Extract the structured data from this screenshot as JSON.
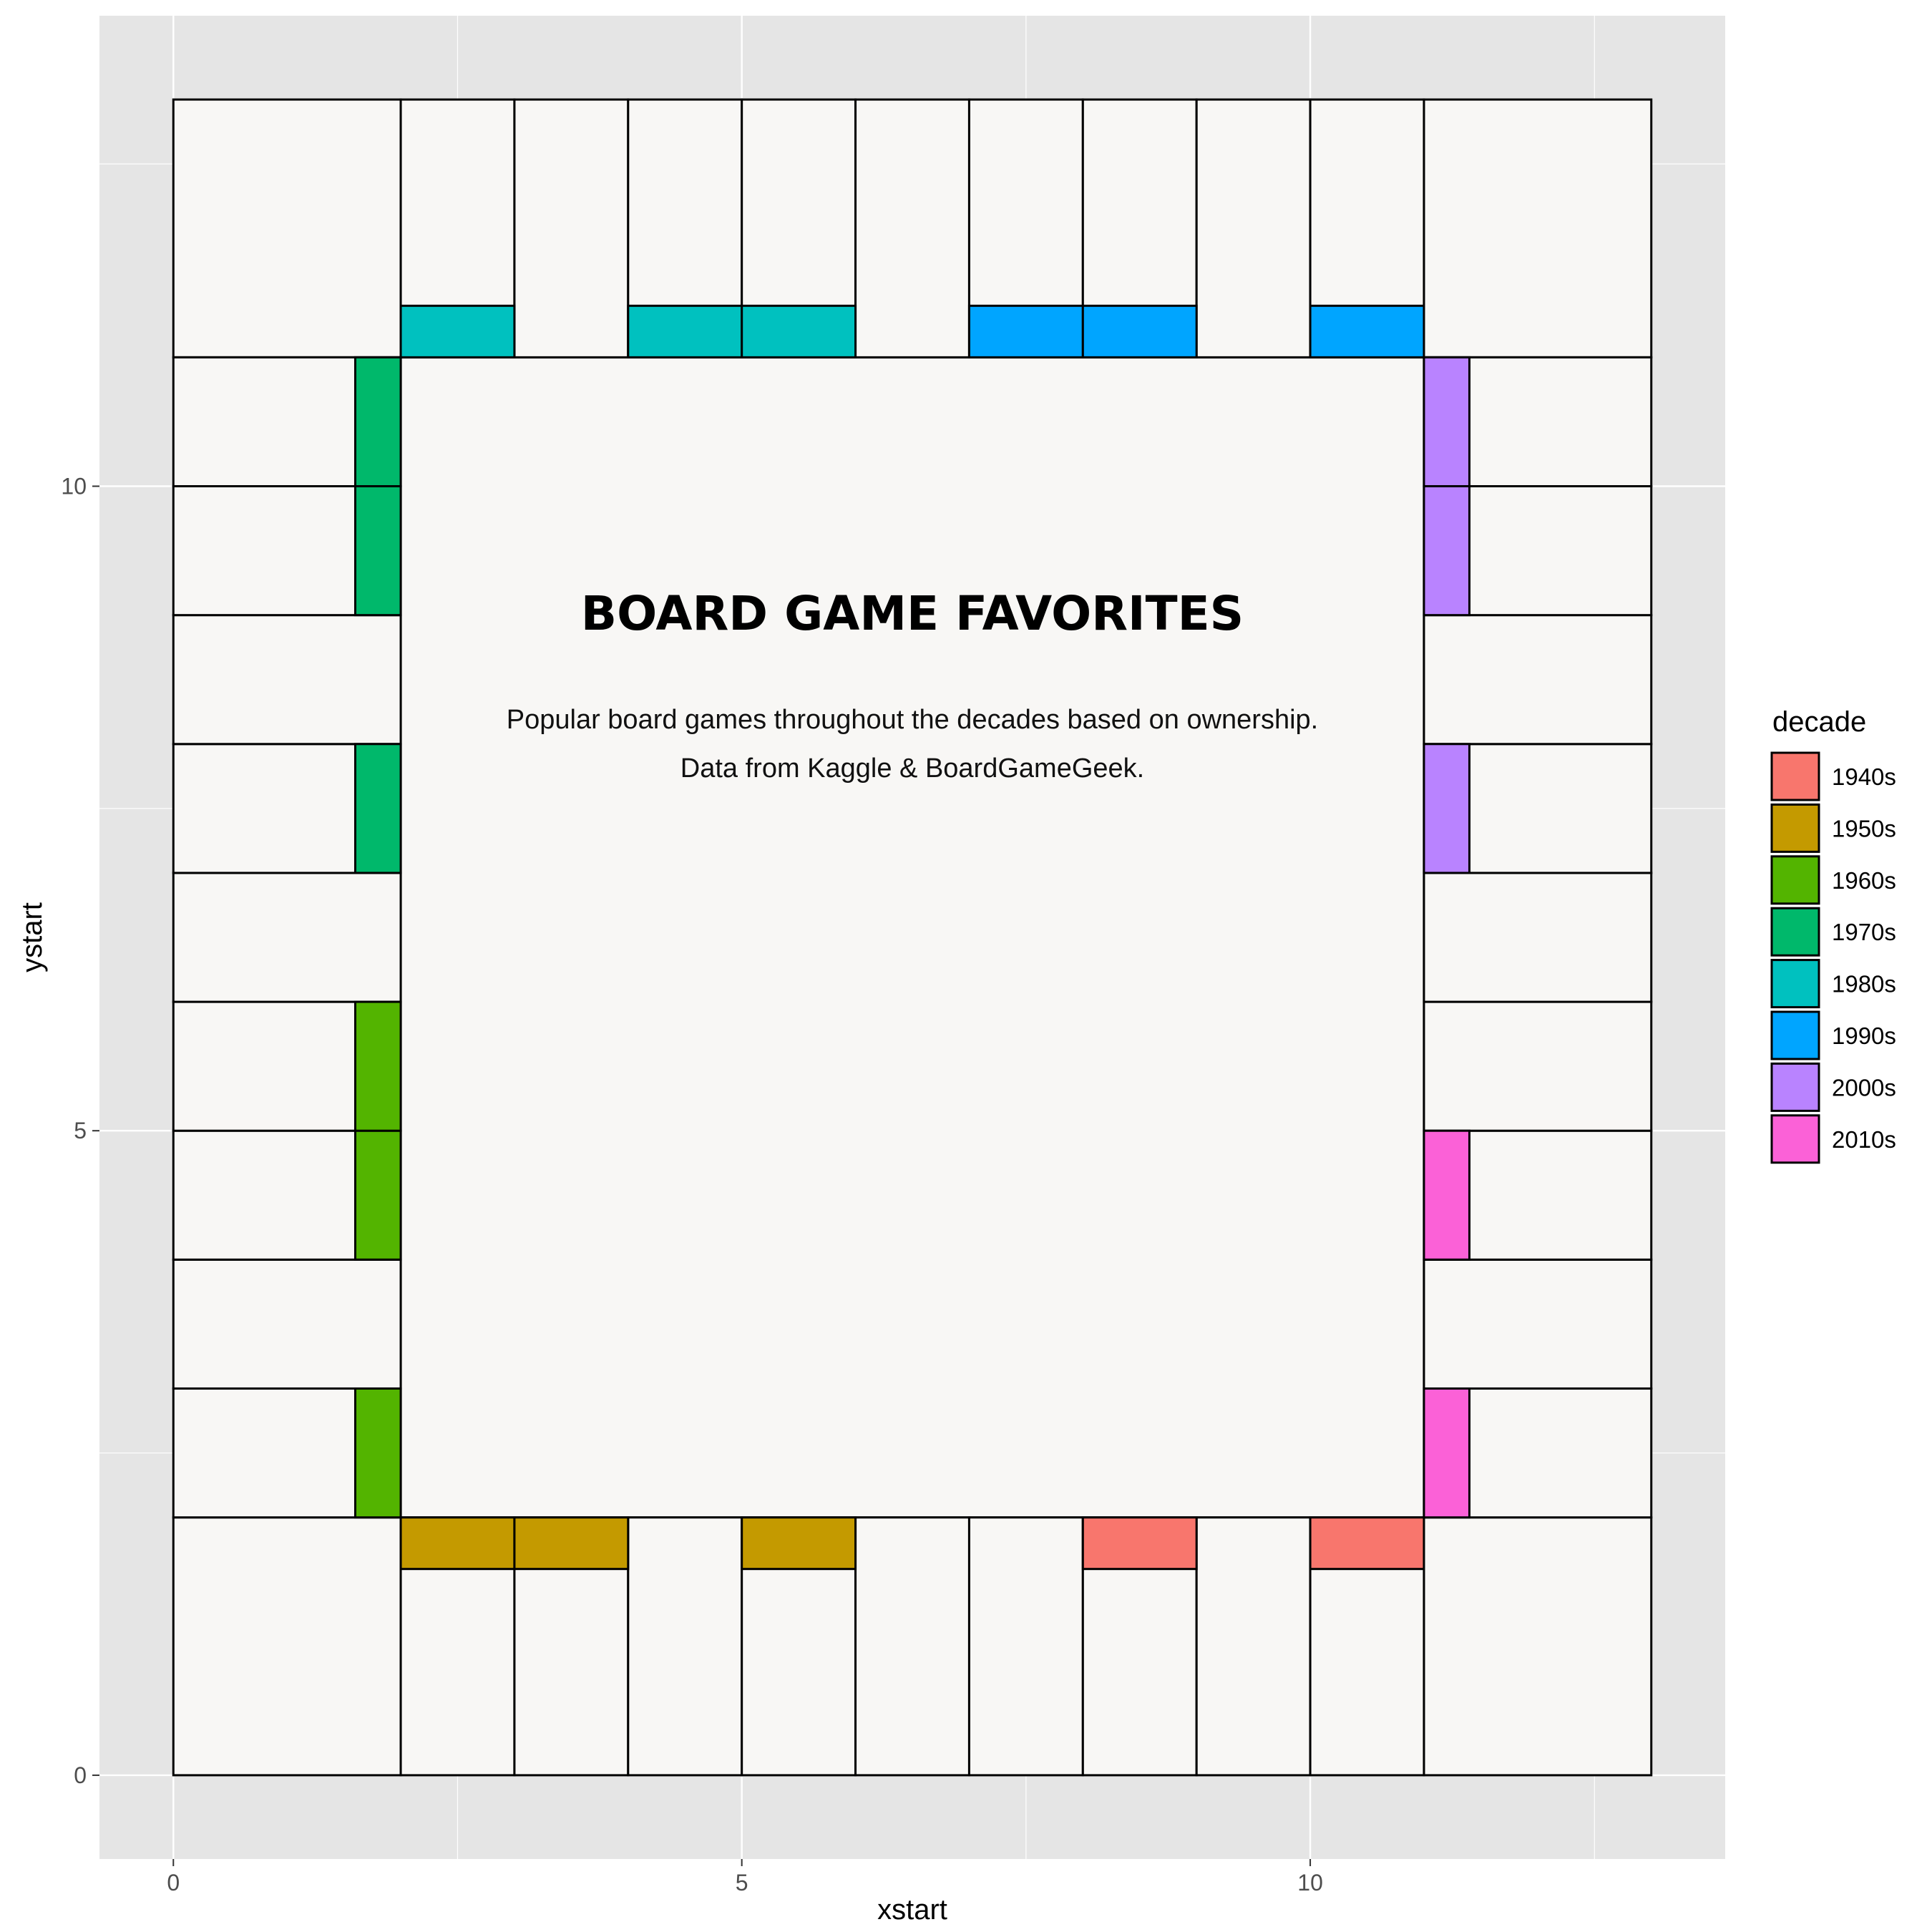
{
  "chart_data": {
    "type": "table",
    "title": "BOARD GAME FAVORITES",
    "subtitle_lines": [
      "Popular board games throughout the decades based on ownership.",
      "Data from Kaggle & BoardGameGeek."
    ],
    "xlabel": "xstart",
    "ylabel": "ystart",
    "xlim": [
      -0.65,
      13.65
    ],
    "ylim": [
      -0.65,
      13.65
    ],
    "x_ticks": [
      0,
      5,
      10
    ],
    "y_ticks": [
      0,
      5,
      10
    ],
    "grid": true,
    "panel_background": "#e5e5e5",
    "gridline_color": "#ffffff",
    "board_fill": "#f8f7f5",
    "border_color": "#000000",
    "legend": {
      "title": "decade",
      "position": "right",
      "entries": [
        {
          "label": "1940s",
          "color": "#f8766d"
        },
        {
          "label": "1950s",
          "color": "#c49a00"
        },
        {
          "label": "1960s",
          "color": "#53b400"
        },
        {
          "label": "1970s",
          "color": "#00b86b"
        },
        {
          "label": "1980s",
          "color": "#00c1bf"
        },
        {
          "label": "1990s",
          "color": "#00a5ff"
        },
        {
          "label": "2000s",
          "color": "#b983ff"
        },
        {
          "label": "2010s",
          "color": "#fb61d7"
        }
      ]
    },
    "board": {
      "corners": [
        {
          "xstart": 0,
          "xend": 2,
          "ystart": 0,
          "yend": 2
        },
        {
          "xstart": 11,
          "xend": 13,
          "ystart": 0,
          "yend": 2
        },
        {
          "xstart": 0,
          "xend": 2,
          "ystart": 11,
          "yend": 13
        },
        {
          "xstart": 11,
          "xend": 13,
          "ystart": 11,
          "yend": 13
        }
      ],
      "center": {
        "xstart": 2,
        "xend": 11,
        "ystart": 2,
        "yend": 11
      },
      "bottom_row_xstart": [
        2,
        3,
        4,
        5,
        6,
        7,
        8,
        9,
        10
      ],
      "top_row_xstart": [
        2,
        3,
        4,
        5,
        6,
        7,
        8,
        9,
        10
      ],
      "left_column_ystart": [
        2,
        3,
        4,
        5,
        6,
        7,
        8,
        9,
        10
      ],
      "right_column_ystart": [
        2,
        3,
        4,
        5,
        6,
        7,
        8,
        9,
        10
      ]
    },
    "colored_spaces": [
      {
        "side": "bottom",
        "xstart": 2,
        "decade": "1950s"
      },
      {
        "side": "bottom",
        "xstart": 3,
        "decade": "1950s"
      },
      {
        "side": "bottom",
        "xstart": 5,
        "decade": "1950s"
      },
      {
        "side": "bottom",
        "xstart": 8,
        "decade": "1940s"
      },
      {
        "side": "bottom",
        "xstart": 10,
        "decade": "1940s"
      },
      {
        "side": "left",
        "ystart": 2,
        "decade": "1960s"
      },
      {
        "side": "left",
        "ystart": 4,
        "decade": "1960s"
      },
      {
        "side": "left",
        "ystart": 5,
        "decade": "1960s"
      },
      {
        "side": "left",
        "ystart": 7,
        "decade": "1970s"
      },
      {
        "side": "left",
        "ystart": 9,
        "decade": "1970s"
      },
      {
        "side": "left",
        "ystart": 10,
        "decade": "1970s"
      },
      {
        "side": "top",
        "xstart": 2,
        "decade": "1980s"
      },
      {
        "side": "top",
        "xstart": 4,
        "decade": "1980s"
      },
      {
        "side": "top",
        "xstart": 5,
        "decade": "1980s"
      },
      {
        "side": "top",
        "xstart": 7,
        "decade": "1990s"
      },
      {
        "side": "top",
        "xstart": 8,
        "decade": "1990s"
      },
      {
        "side": "top",
        "xstart": 10,
        "decade": "1990s"
      },
      {
        "side": "right",
        "ystart": 10,
        "decade": "2000s"
      },
      {
        "side": "right",
        "ystart": 9,
        "decade": "2000s"
      },
      {
        "side": "right",
        "ystart": 7,
        "decade": "2000s"
      },
      {
        "side": "right",
        "ystart": 4,
        "decade": "2010s"
      },
      {
        "side": "right",
        "ystart": 2,
        "decade": "2010s"
      }
    ]
  }
}
